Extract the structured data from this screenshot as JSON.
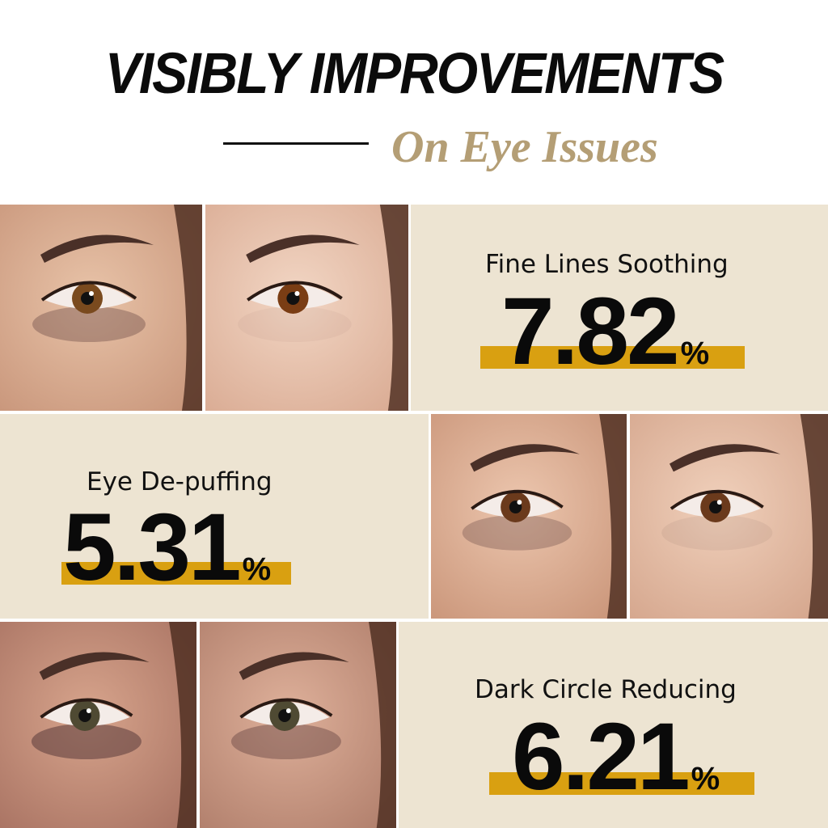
{
  "header": {
    "title": "VISIBLY IMPROVEMENTS",
    "subtitle": "On Eye Issues"
  },
  "colors": {
    "panel_bg": "#ede4d2",
    "highlight_bar": "#d9a011",
    "subtitle": "#b49e75"
  },
  "stats": [
    {
      "label": "Fine Lines Soothing",
      "value": "7.82",
      "unit": "%"
    },
    {
      "label": "Eye De-puffing",
      "value": "5.31",
      "unit": "%"
    },
    {
      "label": "Dark Circle Reducing",
      "value": "6.21",
      "unit": "%"
    }
  ]
}
